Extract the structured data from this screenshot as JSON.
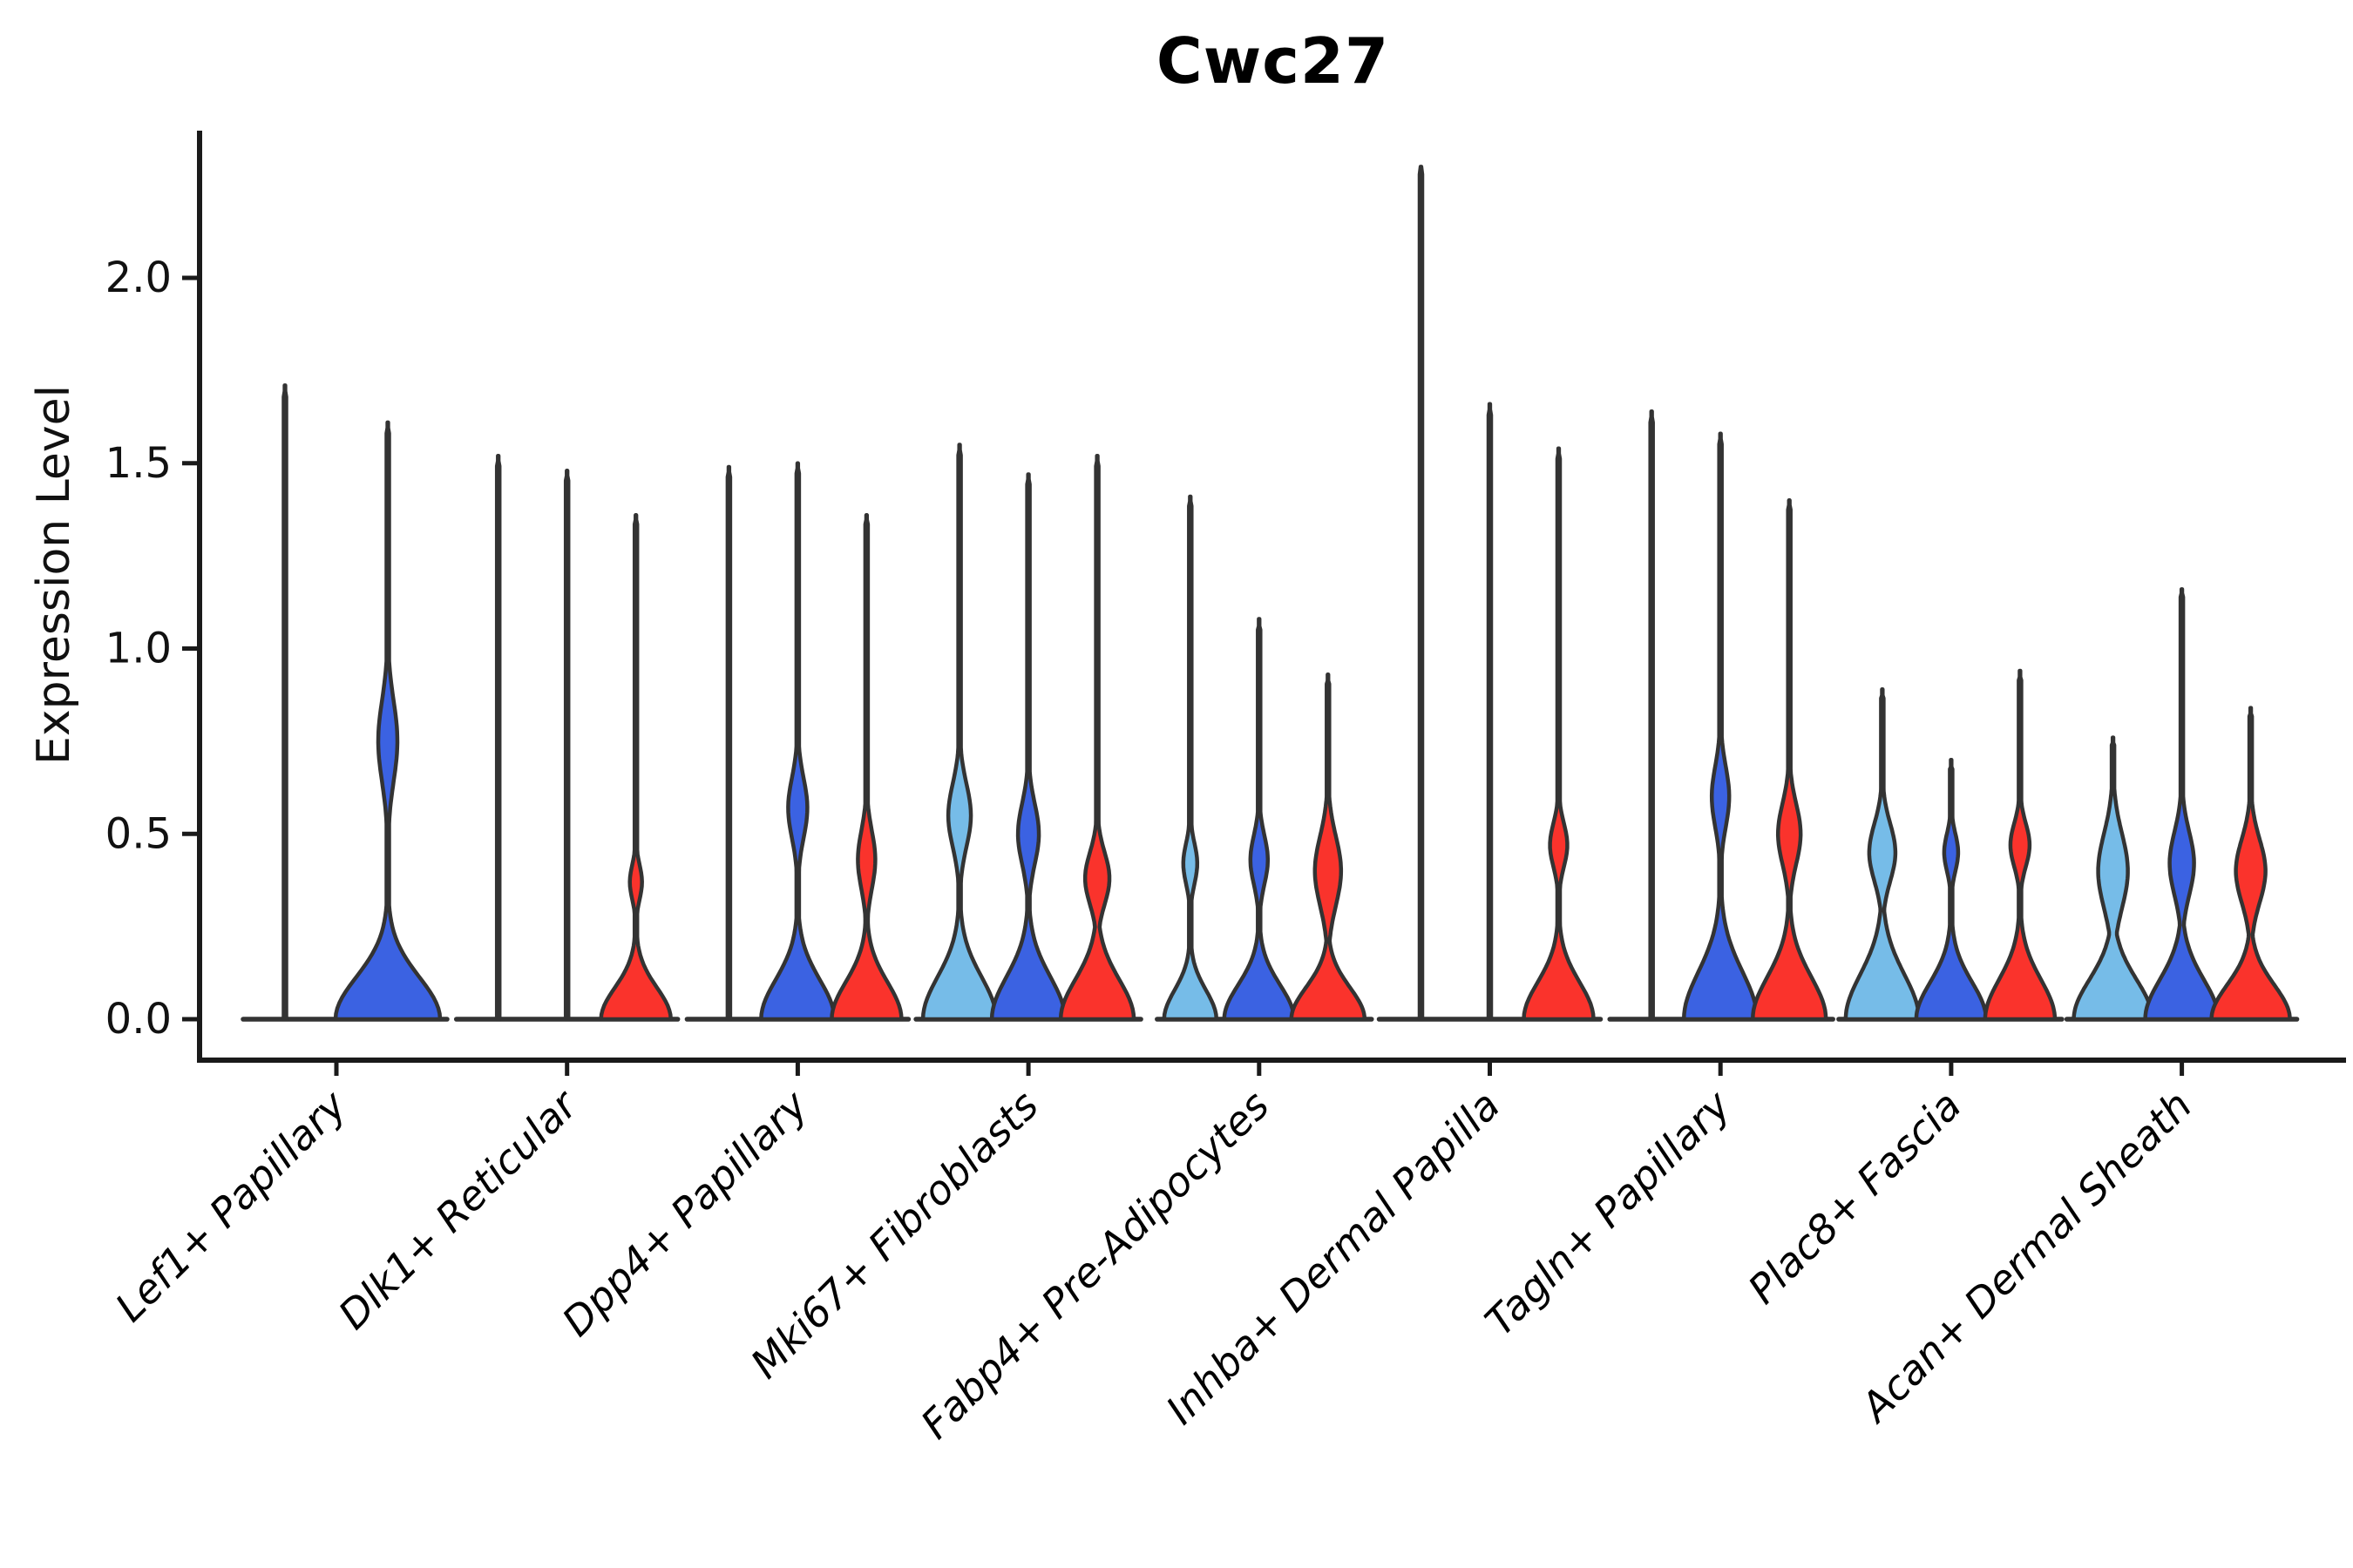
{
  "chart_data": {
    "type": "violin",
    "title": "Cwc27",
    "ylabel": "Expression Level",
    "xlabel": "",
    "yticks": [
      "0.0",
      "0.5",
      "1.0",
      "1.5",
      "2.0"
    ],
    "ytick_values": [
      0.0,
      0.5,
      1.0,
      1.5,
      2.0
    ],
    "ylim": [
      0.0,
      2.45
    ],
    "grid": false,
    "legend": "none",
    "palette": {
      "skyblue": "#76BCE8",
      "blue": "#3B62E2",
      "red": "#FA332C",
      "outline": "#333333",
      "axis": "#1a1a1a"
    },
    "groups": [
      {
        "label": "Lef1+ Papillary",
        "violins": [
          {
            "color": "skyblue",
            "max": 1.71,
            "kind": "spike"
          },
          {
            "color": "blue",
            "max": 1.61,
            "kind": "violin",
            "lens": {
              "center": 0.75,
              "extent": 0.28,
              "halfwidth": 11
            },
            "base": {
              "halfwidth": 60,
              "rise": 0.16
            }
          }
        ]
      },
      {
        "label": "Dlk1+ Reticular",
        "violins": [
          {
            "color": "skyblue",
            "max": 1.52,
            "kind": "spike"
          },
          {
            "color": "blue",
            "max": 1.48,
            "kind": "spike"
          },
          {
            "color": "red",
            "max": 1.36,
            "kind": "violin",
            "lens": {
              "center": 0.37,
              "extent": 0.12,
              "halfwidth": 7
            },
            "base": {
              "halfwidth": 40,
              "rise": 0.12
            }
          }
        ]
      },
      {
        "label": "Dpp4+ Papillary",
        "violins": [
          {
            "color": "skyblue",
            "max": 1.49,
            "kind": "spike"
          },
          {
            "color": "blue",
            "max": 1.5,
            "kind": "violin",
            "lens": {
              "center": 0.57,
              "extent": 0.21,
              "halfwidth": 11
            },
            "base": {
              "halfwidth": 42,
              "rise": 0.15
            }
          },
          {
            "color": "red",
            "max": 1.36,
            "kind": "violin",
            "lens": {
              "center": 0.43,
              "extent": 0.2,
              "halfwidth": 10
            },
            "base": {
              "halfwidth": 40,
              "rise": 0.14
            }
          }
        ]
      },
      {
        "label": "Mki67+ Fibroblasts",
        "violins": [
          {
            "color": "skyblue",
            "max": 1.55,
            "kind": "violin",
            "lens": {
              "center": 0.55,
              "extent": 0.22,
              "halfwidth": 13
            },
            "base": {
              "halfwidth": 42,
              "rise": 0.16
            }
          },
          {
            "color": "blue",
            "max": 1.47,
            "kind": "violin",
            "lens": {
              "center": 0.5,
              "extent": 0.21,
              "halfwidth": 12
            },
            "base": {
              "halfwidth": 42,
              "rise": 0.16
            }
          },
          {
            "color": "red",
            "max": 1.52,
            "kind": "violin",
            "lens": {
              "center": 0.38,
              "extent": 0.18,
              "halfwidth": 14
            },
            "base": {
              "halfwidth": 42,
              "rise": 0.15
            }
          }
        ]
      },
      {
        "label": "Fabp4+ Pre-Adipocytes",
        "violins": [
          {
            "color": "skyblue",
            "max": 1.41,
            "kind": "violin",
            "lens": {
              "center": 0.42,
              "extent": 0.14,
              "halfwidth": 8
            },
            "base": {
              "halfwidth": 30,
              "rise": 0.11
            }
          },
          {
            "color": "blue",
            "max": 1.08,
            "kind": "violin",
            "lens": {
              "center": 0.43,
              "extent": 0.17,
              "halfwidth": 10
            },
            "base": {
              "halfwidth": 40,
              "rise": 0.13
            }
          },
          {
            "color": "red",
            "max": 0.93,
            "kind": "violin",
            "lens": {
              "center": 0.4,
              "extent": 0.24,
              "halfwidth": 15
            },
            "base": {
              "halfwidth": 42,
              "rise": 0.12
            }
          }
        ]
      },
      {
        "label": "Inhba+ Dermal Papilla",
        "violins": [
          {
            "color": "skyblue",
            "max": 2.3,
            "kind": "spike"
          },
          {
            "color": "blue",
            "max": 1.66,
            "kind": "spike"
          },
          {
            "color": "red",
            "max": 1.54,
            "kind": "violin",
            "lens": {
              "center": 0.47,
              "extent": 0.15,
              "halfwidth": 10
            },
            "base": {
              "halfwidth": 40,
              "rise": 0.14
            }
          }
        ]
      },
      {
        "label": "Tagln+ Papillary",
        "violins": [
          {
            "color": "skyblue",
            "max": 1.64,
            "kind": "spike"
          },
          {
            "color": "blue",
            "max": 1.58,
            "kind": "violin",
            "lens": {
              "center": 0.6,
              "extent": 0.21,
              "halfwidth": 10
            },
            "base": {
              "halfwidth": 42,
              "rise": 0.18
            }
          },
          {
            "color": "red",
            "max": 1.4,
            "kind": "violin",
            "lens": {
              "center": 0.5,
              "extent": 0.21,
              "halfwidth": 13
            },
            "base": {
              "halfwidth": 42,
              "rise": 0.16
            }
          }
        ]
      },
      {
        "label": "Plac8+ Fascia",
        "violins": [
          {
            "color": "skyblue",
            "max": 0.89,
            "kind": "violin",
            "lens": {
              "center": 0.45,
              "extent": 0.2,
              "halfwidth": 15
            },
            "base": {
              "halfwidth": 42,
              "rise": 0.17
            }
          },
          {
            "color": "blue",
            "max": 0.7,
            "kind": "violin",
            "lens": {
              "center": 0.45,
              "extent": 0.13,
              "halfwidth": 8
            },
            "base": {
              "halfwidth": 40,
              "rise": 0.14
            }
          },
          {
            "color": "red",
            "max": 0.94,
            "kind": "violin",
            "lens": {
              "center": 0.47,
              "extent": 0.15,
              "halfwidth": 11
            },
            "base": {
              "halfwidth": 40,
              "rise": 0.15
            }
          }
        ]
      },
      {
        "label": "Acan+ Dermal Sheath",
        "violins": [
          {
            "color": "skyblue",
            "max": 0.76,
            "kind": "violin",
            "lens": {
              "center": 0.4,
              "extent": 0.26,
              "halfwidth": 17
            },
            "base": {
              "halfwidth": 45,
              "rise": 0.15
            }
          },
          {
            "color": "blue",
            "max": 1.16,
            "kind": "violin",
            "lens": {
              "center": 0.42,
              "extent": 0.22,
              "halfwidth": 14
            },
            "base": {
              "halfwidth": 42,
              "rise": 0.15
            }
          },
          {
            "color": "red",
            "max": 0.84,
            "kind": "violin",
            "lens": {
              "center": 0.4,
              "extent": 0.22,
              "halfwidth": 17
            },
            "base": {
              "halfwidth": 45,
              "rise": 0.13
            }
          }
        ]
      }
    ]
  }
}
